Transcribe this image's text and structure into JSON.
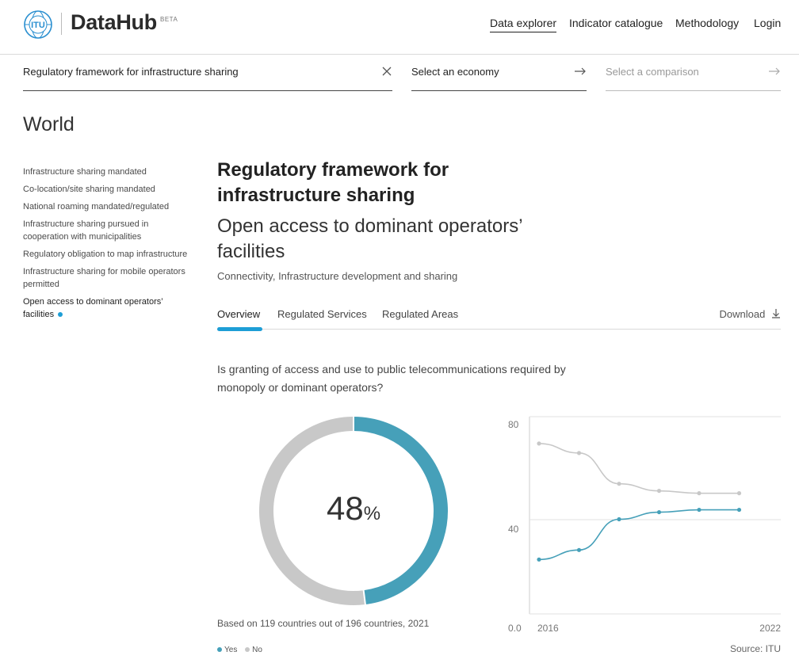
{
  "header": {
    "brand": "DataHub",
    "beta": "BETA",
    "logo_text": "ITU",
    "nav": [
      "Data explorer",
      "Indicator catalogue",
      "Methodology",
      "Login"
    ]
  },
  "selectors": {
    "indicator": "Regulatory framework for infrastructure sharing",
    "economy": "Select an economy",
    "comparison": "Select a comparison"
  },
  "region": "World",
  "sidebar": {
    "items": [
      "Infrastructure sharing mandated",
      "Co-location/site sharing mandated",
      "National roaming mandated/regulated",
      "Infrastructure sharing pursued in cooperation with municipalities",
      "Regulatory obligation to map infrastructure",
      "Infrastructure sharing for mobile operators permitted",
      "Open access to dominant operators’ facilities"
    ],
    "active_index": 6
  },
  "main": {
    "title": "Regulatory framework for infrastructure sharing",
    "subtitle": "Open access to dominant operators’ facilities",
    "categories": "Connectivity, Infrastructure development and sharing",
    "tabs": [
      "Overview",
      "Regulated Services",
      "Regulated Areas"
    ],
    "download": "Download",
    "question": "Is granting of access and use to public telecommunications required by monopoly or dominant operators?",
    "percent": "48",
    "percent_symbol": "%",
    "basis": "Based on 119 countries out of 196 countries, 2021",
    "legend_yes": "Yes",
    "legend_no": "No",
    "source": "Source: ITU"
  },
  "colors": {
    "accent": "#1e9ed6",
    "yes": "#46a0b9",
    "no": "#c8c8c8"
  },
  "chart_data": [
    {
      "type": "pie",
      "labels": [
        "Yes",
        "No"
      ],
      "values": [
        48,
        52
      ]
    },
    {
      "type": "line",
      "x": [
        2016,
        2017,
        2018,
        2019,
        2020,
        2021
      ],
      "x_tick_labels": [
        "2016",
        "2022"
      ],
      "y_ticks": [
        "0.0",
        "40",
        "80"
      ],
      "ylim": [
        0,
        80
      ],
      "series": [
        {
          "name": "Yes",
          "color": "#46a0b9",
          "values": [
            23,
            27,
            40,
            43,
            44,
            44
          ]
        },
        {
          "name": "No",
          "color": "#c8c8c8",
          "values": [
            72,
            68,
            55,
            52,
            51,
            51
          ]
        }
      ]
    }
  ]
}
